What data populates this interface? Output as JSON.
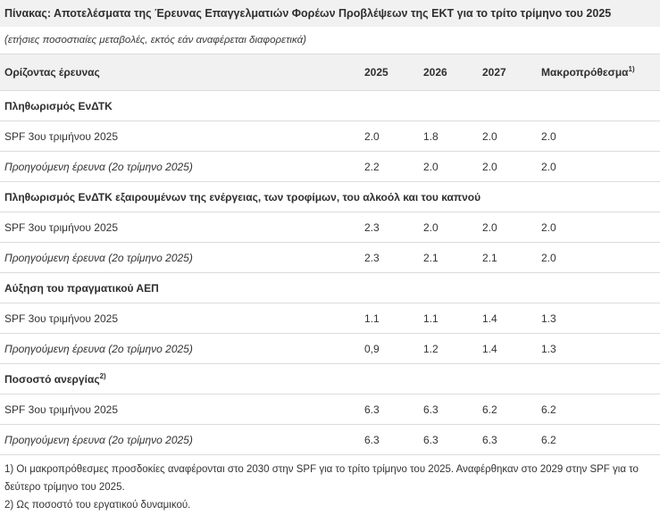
{
  "title": "Πίνακας: Αποτελέσματα της Έρευνας Επαγγελματιών Φορέων Προβλέψεων της ΕΚΤ για το τρίτο τρίμηνο του 2025",
  "subtitle": "(ετήσιες ποσοστιαίες μεταβολές, εκτός εάν αναφέρεται διαφορετικά)",
  "header": {
    "horizon": "Ορίζοντας έρευνας",
    "y2025": "2025",
    "y2026": "2026",
    "y2027": "2027",
    "longterm": "Μακροπρόθεσμα",
    "longterm_note": "1)"
  },
  "sections": [
    {
      "title": "Πληθωρισμός ΕνΔΤΚ",
      "title_note": "",
      "rows": [
        {
          "label": "SPF 3ου τριμήνου 2025",
          "v2025": "2.0",
          "v2026": "1.8",
          "v2027": "2.0",
          "lt": "2.0"
        },
        {
          "label": "Προηγούμενη έρευνα (2ο τρίμηνο 2025)",
          "v2025": "2.2",
          "v2026": "2.0",
          "v2027": "2.0",
          "lt": "2.0"
        }
      ]
    },
    {
      "title": "Πληθωρισμός ΕνΔΤΚ εξαιρουμένων της ενέργειας, των τροφίμων, του αλκοόλ και του καπνού",
      "title_note": "",
      "rows": [
        {
          "label": "SPF 3ου τριμήνου 2025",
          "v2025": "2.3",
          "v2026": "2.0",
          "v2027": "2.0",
          "lt": "2.0"
        },
        {
          "label": "Προηγούμενη έρευνα (2ο τρίμηνο 2025)",
          "v2025": "2.3",
          "v2026": "2.1",
          "v2027": "2.1",
          "lt": "2.0"
        }
      ]
    },
    {
      "title": "Αύξηση του πραγματικού ΑΕΠ",
      "title_note": "",
      "rows": [
        {
          "label": "SPF 3ου τριμήνου 2025",
          "v2025": "1.1",
          "v2026": "1.1",
          "v2027": "1.4",
          "lt": "1.3"
        },
        {
          "label": "Προηγούμενη έρευνα (2ο τρίμηνο 2025)",
          "v2025": "0,9",
          "v2026": "1.2",
          "v2027": "1.4",
          "lt": "1.3"
        }
      ]
    },
    {
      "title": "Ποσοστό ανεργίας",
      "title_note": "2)",
      "rows": [
        {
          "label": "SPF 3ου τριμήνου 2025",
          "v2025": "6.3",
          "v2026": "6.3",
          "v2027": "6.2",
          "lt": "6.2"
        },
        {
          "label": "Προηγούμενη έρευνα (2ο τρίμηνο 2025)",
          "v2025": "6.3",
          "v2026": "6.3",
          "v2027": "6.3",
          "lt": "6.2"
        }
      ]
    }
  ],
  "footnotes": [
    "1) Οι μακροπρόθεσμες προσδοκίες αναφέρονται στο 2030 στην SPF για το τρίτο τρίμηνο του 2025. Αναφέρθηκαν στο 2029 στην SPF για το δεύτερο τρίμηνο του 2025.",
    "2) Ως ποσοστό του εργατικού δυναμικού."
  ]
}
